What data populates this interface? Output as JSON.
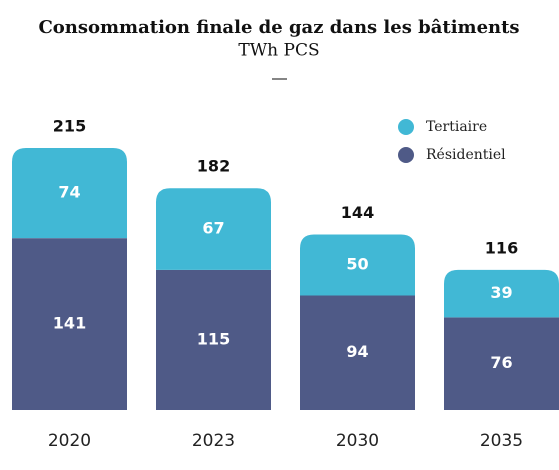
{
  "chart_data": {
    "type": "stacked_bar",
    "title": "Consommation finale de gaz dans les bâtiments",
    "subtitle": "TWh PCS",
    "categories": [
      "2020",
      "2023",
      "2030",
      "2035"
    ],
    "series": [
      {
        "name": "Résidentiel",
        "color": "#4f5a87",
        "values": [
          141,
          115,
          94,
          76
        ]
      },
      {
        "name": "Tertiaire",
        "color": "#41b8d5",
        "values": [
          74,
          67,
          50,
          39
        ]
      }
    ],
    "totals": [
      215,
      182,
      144,
      116
    ]
  }
}
